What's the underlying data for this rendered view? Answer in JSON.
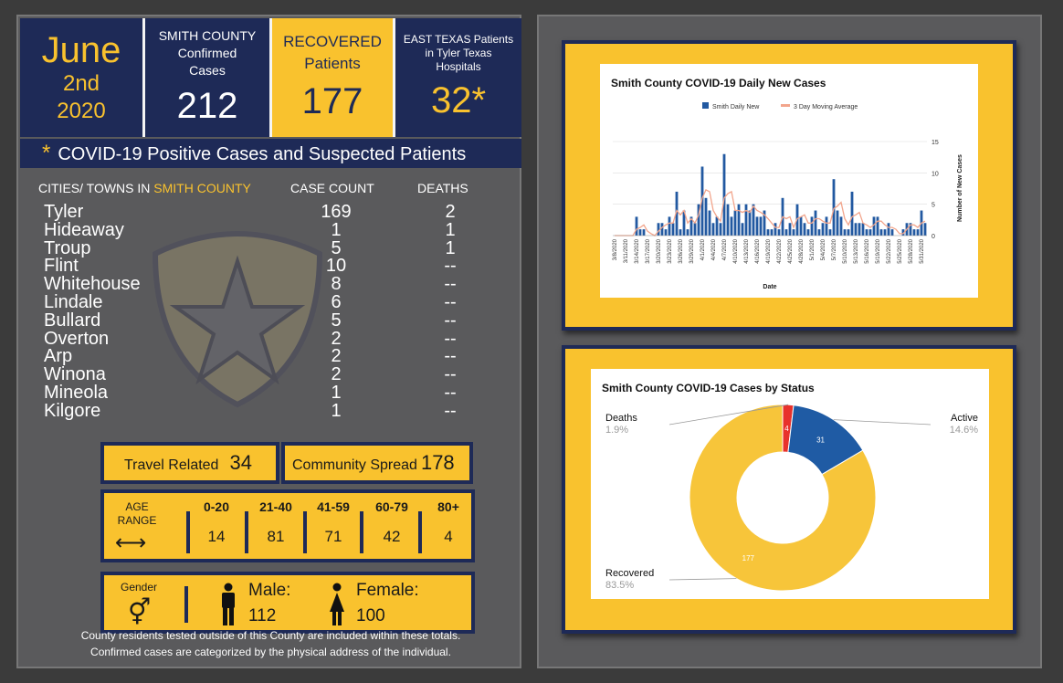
{
  "header": {
    "month": "June",
    "day": "2nd",
    "year": "2020",
    "confirmed_label": [
      "SMITH COUNTY",
      "Confirmed",
      "Cases"
    ],
    "confirmed_value": "212",
    "recovered_label": [
      "RECOVERED",
      "Patients"
    ],
    "recovered_value": "177",
    "east_label": [
      "EAST TEXAS Patients",
      "in Tyler Texas",
      "Hospitals"
    ],
    "east_value": "32*"
  },
  "banner": {
    "star": "*",
    "text": "COVID-19 Positive Cases and Suspected Patients"
  },
  "table": {
    "col_city_prefix": "CITIES/ TOWNS IN ",
    "col_city_highlight": "SMITH COUNTY",
    "col_count": "CASE COUNT",
    "col_deaths": "DEATHS",
    "rows": [
      {
        "city": "Tyler",
        "count": "169",
        "deaths": "2"
      },
      {
        "city": "Hideaway",
        "count": "1",
        "deaths": "1"
      },
      {
        "city": "Troup",
        "count": "5",
        "deaths": "1"
      },
      {
        "city": "Flint",
        "count": "10",
        "deaths": "--"
      },
      {
        "city": "Whitehouse",
        "count": "8",
        "deaths": "--"
      },
      {
        "city": "Lindale",
        "count": "6",
        "deaths": "--"
      },
      {
        "city": "Bullard",
        "count": "5",
        "deaths": "--"
      },
      {
        "city": "Overton",
        "count": "2",
        "deaths": "--"
      },
      {
        "city": "Arp",
        "count": "2",
        "deaths": "--"
      },
      {
        "city": "Winona",
        "count": "2",
        "deaths": "--"
      },
      {
        "city": "Mineola",
        "count": "1",
        "deaths": "--"
      },
      {
        "city": "Kilgore",
        "count": "1",
        "deaths": "--"
      }
    ]
  },
  "spread": {
    "travel_label": "Travel Related",
    "travel_value": "34",
    "community_label": "Community Spread",
    "community_value": "178"
  },
  "age": {
    "label": [
      "AGE",
      "RANGE"
    ],
    "arrow": "⟷",
    "ranges": [
      {
        "range": "0-20",
        "value": "14"
      },
      {
        "range": "21-40",
        "value": "81"
      },
      {
        "range": "41-59",
        "value": "71"
      },
      {
        "range": "60-79",
        "value": "42"
      },
      {
        "range": "80+",
        "value": "4"
      }
    ]
  },
  "gender": {
    "label": "Gender",
    "symbol": "⚥",
    "male_label": "Male:",
    "male_value": "112",
    "female_label": "Female:",
    "female_value": "100"
  },
  "footnote": [
    "County residents tested outside of this County are included within these totals.",
    "Confirmed cases are categorized by the physical address of the individual."
  ],
  "colors": {
    "navy": "#1e2a57",
    "gold": "#f9c22e",
    "bar_blue": "#2259a1",
    "moving_avg": "#f2a58c",
    "deaths_red": "#e8322c",
    "active_blue": "#1f5ba4",
    "recovered_gold": "#f7c53a"
  },
  "chart_data": [
    {
      "type": "bar",
      "title": "Smith County COVID-19 Daily New Cases",
      "xlabel": "Date",
      "ylabel": "Number of New Cases",
      "ylim": [
        0,
        15
      ],
      "yticks": [
        0,
        5,
        10,
        15
      ],
      "y_axis_side": "right",
      "legend_position": "top",
      "categories": [
        "3/8/2020",
        "3/9/2020",
        "3/10/2020",
        "3/11/2020",
        "3/12/2020",
        "3/13/2020",
        "3/14/2020",
        "3/15/2020",
        "3/16/2020",
        "3/17/2020",
        "3/18/2020",
        "3/19/2020",
        "3/20/2020",
        "3/21/2020",
        "3/22/2020",
        "3/23/2020",
        "3/24/2020",
        "3/25/2020",
        "3/26/2020",
        "3/27/2020",
        "3/28/2020",
        "3/29/2020",
        "3/30/2020",
        "3/31/2020",
        "4/1/2020",
        "4/2/2020",
        "4/3/2020",
        "4/4/2020",
        "4/5/2020",
        "4/6/2020",
        "4/7/2020",
        "4/8/2020",
        "4/9/2020",
        "4/10/2020",
        "4/11/2020",
        "4/12/2020",
        "4/13/2020",
        "4/14/2020",
        "4/15/2020",
        "4/16/2020",
        "4/17/2020",
        "4/18/2020",
        "4/19/2020",
        "4/20/2020",
        "4/21/2020",
        "4/22/2020",
        "4/23/2020",
        "4/24/2020",
        "4/25/2020",
        "4/26/2020",
        "4/27/2020",
        "4/28/2020",
        "4/29/2020",
        "4/30/2020",
        "5/1/2020",
        "5/2/2020",
        "5/3/2020",
        "5/4/2020",
        "5/5/2020",
        "5/6/2020",
        "5/7/2020",
        "5/8/2020",
        "5/9/2020",
        "5/10/2020",
        "5/11/2020",
        "5/12/2020",
        "5/13/2020",
        "5/14/2020",
        "5/15/2020",
        "5/16/2020",
        "5/17/2020",
        "5/18/2020",
        "5/19/2020",
        "5/20/2020",
        "5/21/2020",
        "5/22/2020",
        "5/23/2020",
        "5/24/2020",
        "5/25/2020",
        "5/26/2020",
        "5/27/2020",
        "5/28/2020",
        "5/29/2020",
        "5/30/2020",
        "5/31/2020",
        "6/1/2020"
      ],
      "tick_labels": [
        "3/8/2020",
        "3/11/2020",
        "3/14/2020",
        "3/17/2020",
        "3/20/2020",
        "3/23/2020",
        "3/26/2020",
        "3/29/2020",
        "4/1/2020",
        "4/4/2020",
        "4/7/2020",
        "4/10/2020",
        "4/13/2020",
        "4/16/2020",
        "4/19/2020",
        "4/22/2020",
        "4/25/2020",
        "4/28/2020",
        "5/1/2020",
        "5/4/2020",
        "5/7/2020",
        "5/10/2020",
        "5/13/2020",
        "5/16/2020",
        "5/19/2020",
        "5/22/2020",
        "5/25/2020",
        "5/28/2020",
        "5/31/2020"
      ],
      "series": [
        {
          "name": "Smith Daily New",
          "values": [
            0,
            0,
            0,
            0,
            0,
            0,
            3,
            1,
            1,
            0,
            0,
            0,
            2,
            2,
            1,
            3,
            2,
            7,
            1,
            4,
            1,
            3,
            2,
            5,
            11,
            6,
            4,
            2,
            3,
            2,
            13,
            5,
            3,
            4,
            5,
            2,
            5,
            4,
            5,
            3,
            3,
            4,
            1,
            1,
            2,
            1,
            6,
            1,
            2,
            1,
            5,
            3,
            2,
            1,
            3,
            4,
            1,
            2,
            3,
            1,
            9,
            4,
            3,
            1,
            1,
            7,
            2,
            2,
            2,
            1,
            1,
            3,
            3,
            1,
            1,
            2,
            1,
            0,
            0,
            1,
            2,
            2,
            1,
            1,
            4,
            2
          ]
        },
        {
          "name": "3 Day Moving Average",
          "values": [
            0,
            0,
            0,
            0,
            0,
            0,
            1,
            1.3,
            1.7,
            0.7,
            0.3,
            0,
            0.7,
            1.3,
            1.7,
            2,
            2,
            4,
            3.3,
            4,
            2,
            2.7,
            2,
            3.3,
            6,
            7.3,
            7,
            4,
            3,
            2.3,
            6,
            6.7,
            7,
            4,
            4,
            3.7,
            4,
            3.7,
            4.7,
            4,
            3.7,
            3.3,
            2.7,
            2,
            1.3,
            1.3,
            3,
            2.7,
            3,
            1.3,
            2.7,
            3,
            3.3,
            2,
            2,
            2.7,
            2.7,
            2.3,
            2,
            2,
            4.3,
            4.7,
            5.3,
            2.7,
            1.7,
            3,
            3.3,
            3.7,
            2,
            1.7,
            1.3,
            1.7,
            2.3,
            2.3,
            1.7,
            1.3,
            1.3,
            1,
            0.3,
            0.3,
            1,
            1.7,
            1.7,
            1.3,
            2,
            2.3
          ]
        }
      ]
    },
    {
      "type": "pie",
      "donut": true,
      "title": "Smith County COVID-19 Cases by Status",
      "categories": [
        "Deaths",
        "Active",
        "Recovered"
      ],
      "values": [
        4,
        31,
        177
      ],
      "percent_labels": [
        "1.9%",
        "14.6%",
        "83.5%"
      ],
      "colors": [
        "#e8322c",
        "#1f5ba4",
        "#f7c53a"
      ]
    }
  ]
}
